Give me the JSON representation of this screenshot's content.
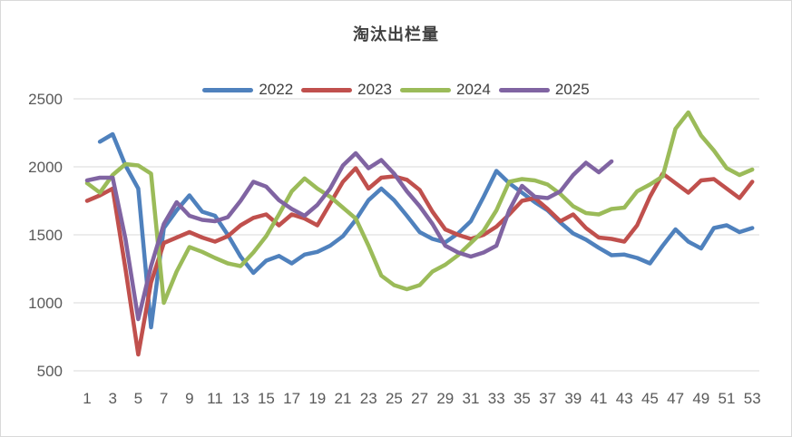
{
  "chart_data": {
    "type": "line",
    "title": "淘汰出栏量",
    "xlabel": "",
    "ylabel": "",
    "x_unit": "week",
    "x_ticks": [
      1,
      3,
      5,
      7,
      9,
      11,
      13,
      15,
      17,
      19,
      21,
      23,
      25,
      27,
      29,
      31,
      33,
      35,
      37,
      39,
      41,
      43,
      45,
      47,
      49,
      51,
      53
    ],
    "y_ticks": [
      500,
      1000,
      1500,
      2000,
      2500
    ],
    "ylim": [
      500,
      2500
    ],
    "xlim": [
      1,
      53
    ],
    "grid": true,
    "legend_position": "top",
    "gridline_color": "#d9d9d9",
    "axis_text_color": "#595959",
    "weeks": [
      1,
      2,
      3,
      4,
      5,
      6,
      7,
      8,
      9,
      10,
      11,
      12,
      13,
      14,
      15,
      16,
      17,
      18,
      19,
      20,
      21,
      22,
      23,
      24,
      25,
      26,
      27,
      28,
      29,
      30,
      31,
      32,
      33,
      34,
      35,
      36,
      37,
      38,
      39,
      40,
      41,
      42,
      43,
      44,
      45,
      46,
      47,
      48,
      49,
      50,
      51,
      52,
      53
    ],
    "series": [
      {
        "name": "2022",
        "color": "#4F81BD",
        "values": [
          null,
          2185,
          2240,
          2010,
          1840,
          820,
          1550,
          1680,
          1790,
          1670,
          1640,
          1500,
          1340,
          1220,
          1310,
          1345,
          1290,
          1355,
          1375,
          1420,
          1490,
          1610,
          1755,
          1840,
          1755,
          1640,
          1520,
          1470,
          1445,
          1510,
          1600,
          1780,
          1970,
          1880,
          1810,
          1740,
          1680,
          1590,
          1510,
          1465,
          1405,
          1350,
          1355,
          1330,
          1290,
          1420,
          1540,
          1450,
          1400,
          1550,
          1570,
          1520,
          1550
        ]
      },
      {
        "name": "2023",
        "color": "#C0504D",
        "values": [
          1750,
          1790,
          1840,
          1250,
          620,
          1150,
          1440,
          1480,
          1520,
          1480,
          1450,
          1490,
          1570,
          1625,
          1650,
          1570,
          1650,
          1620,
          1570,
          1730,
          1890,
          1990,
          1840,
          1920,
          1930,
          1905,
          1830,
          1670,
          1540,
          1500,
          1470,
          1500,
          1560,
          1650,
          1750,
          1770,
          1690,
          1600,
          1650,
          1550,
          1480,
          1470,
          1450,
          1570,
          1780,
          1950,
          1880,
          1810,
          1900,
          1910,
          1840,
          1770,
          1890
        ]
      },
      {
        "name": "2024",
        "color": "#9BBB59",
        "values": [
          1880,
          1810,
          1940,
          2020,
          2010,
          1950,
          1000,
          1230,
          1410,
          1375,
          1330,
          1290,
          1270,
          1370,
          1490,
          1650,
          1820,
          1915,
          1840,
          1780,
          1700,
          1620,
          1420,
          1200,
          1130,
          1100,
          1130,
          1230,
          1280,
          1350,
          1440,
          1530,
          1680,
          1890,
          1910,
          1900,
          1870,
          1800,
          1710,
          1660,
          1650,
          1690,
          1700,
          1820,
          1870,
          1930,
          2280,
          2400,
          2230,
          2120,
          1990,
          1940,
          1980
        ]
      },
      {
        "name": "2025",
        "color": "#8064A2",
        "values": [
          1900,
          1920,
          1920,
          1470,
          880,
          1270,
          1580,
          1740,
          1640,
          1610,
          1600,
          1630,
          1750,
          1890,
          1855,
          1755,
          1690,
          1640,
          1720,
          1840,
          2010,
          2100,
          1990,
          2050,
          1950,
          1820,
          1710,
          1580,
          1420,
          1370,
          1340,
          1370,
          1420,
          1680,
          1860,
          1780,
          1770,
          1820,
          1940,
          2030,
          1960,
          2040,
          null,
          null,
          null,
          null,
          null,
          null,
          null,
          null,
          null,
          null,
          null
        ]
      }
    ]
  }
}
